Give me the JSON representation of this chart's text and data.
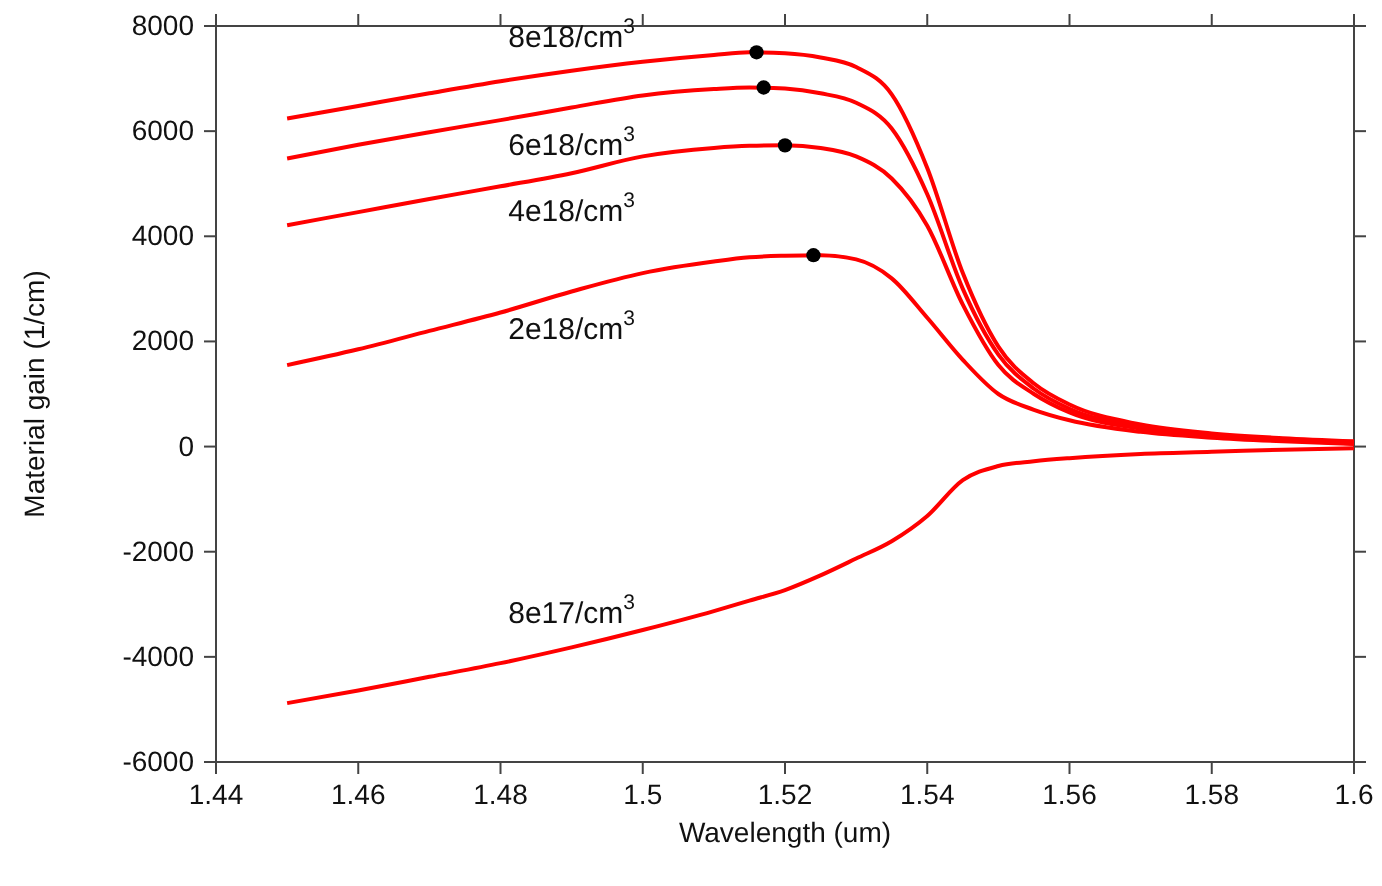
{
  "chart_data": {
    "type": "line",
    "xlabel": "Wavelength (um)",
    "ylabel": "Material gain (1/cm)",
    "x": [
      1.45,
      1.46,
      1.47,
      1.48,
      1.49,
      1.5,
      1.51,
      1.515,
      1.52,
      1.525,
      1.53,
      1.535,
      1.54,
      1.545,
      1.55,
      1.555,
      1.56,
      1.57,
      1.58,
      1.59,
      1.6
    ],
    "series": [
      {
        "name": "8e18/cm$^{3}$",
        "color": "#ff0000",
        "values": [
          6240,
          6480,
          6720,
          6950,
          7150,
          7320,
          7450,
          7500,
          7480,
          7400,
          7220,
          6700,
          5300,
          3300,
          1900,
          1200,
          800,
          420,
          250,
          160,
          100
        ]
      },
      {
        "name": "6e18/cm$^{3}$",
        "color": "#ff0000",
        "values": [
          5480,
          5740,
          5980,
          6210,
          6450,
          6680,
          6800,
          6830,
          6810,
          6720,
          6540,
          6050,
          4800,
          3000,
          1750,
          1100,
          720,
          380,
          220,
          140,
          80
        ]
      },
      {
        "name": "4e18/cm$^{3}$",
        "color": "#ff0000",
        "values": [
          4210,
          4460,
          4710,
          4950,
          5200,
          5520,
          5680,
          5720,
          5730,
          5680,
          5520,
          5100,
          4200,
          2700,
          1550,
          1000,
          650,
          340,
          200,
          120,
          60
        ]
      },
      {
        "name": "2e18/cm$^{3}$",
        "color": "#ff0000",
        "values": [
          1550,
          1850,
          2200,
          2550,
          2950,
          3300,
          3520,
          3600,
          3630,
          3640,
          3560,
          3200,
          2450,
          1650,
          1000,
          700,
          500,
          280,
          170,
          100,
          50
        ]
      },
      {
        "name": "8e17/cm$^{3}$",
        "color": "#ff0000",
        "values": [
          -4880,
          -4640,
          -4380,
          -4120,
          -3820,
          -3490,
          -3130,
          -2930,
          -2730,
          -2450,
          -2130,
          -1800,
          -1320,
          -640,
          -370,
          -280,
          -220,
          -140,
          -100,
          -60,
          -30
        ]
      },
      {
        "type": "scatter",
        "color": "#000000",
        "marker": "circle",
        "x": [
          1.516,
          1.517,
          1.52,
          1.524
        ],
        "values": [
          7500,
          6830,
          5730,
          3640
        ]
      }
    ],
    "xlim": [
      1.44,
      1.6
    ],
    "xticks": [
      1.44,
      1.46,
      1.48,
      1.5,
      1.52,
      1.54,
      1.56,
      1.58,
      1.6
    ],
    "ylim": [
      -6000,
      8000
    ],
    "yticks": [
      -6000,
      -4000,
      -2000,
      0,
      2000,
      4000,
      6000,
      8000
    ],
    "grid": false,
    "marker": "none",
    "line_style": "solid"
  }
}
